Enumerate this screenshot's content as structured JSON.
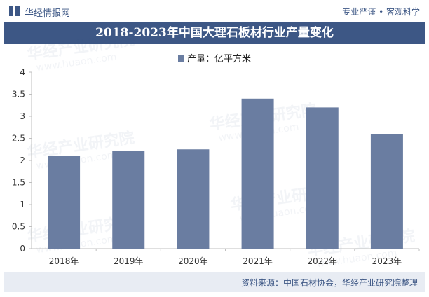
{
  "header": {
    "brand": "华经情报网",
    "slogan": "专业严谨 • 客观科学"
  },
  "footer": {
    "source": "资料来源：中国石材协会，华经产业研究院整理"
  },
  "chart_data": {
    "type": "bar",
    "title": "2018-2023年中国大理石板材行业产量变化",
    "categories": [
      "2018年",
      "2019年",
      "2020年",
      "2021年",
      "2022年",
      "2023年"
    ],
    "series": [
      {
        "name": "产量：亿平方米",
        "values": [
          2.1,
          2.22,
          2.25,
          3.4,
          3.2,
          2.6
        ]
      }
    ],
    "y_ticks": [
      "0",
      "0.5",
      "1",
      "1.5",
      "2",
      "2.5",
      "3",
      "3.5",
      "4"
    ],
    "ylim": [
      0,
      4
    ],
    "legend": "top-center",
    "grid": false,
    "colors": {
      "bar": "#6a7da1",
      "header": "#3d5785"
    }
  },
  "watermark": {
    "text_cn": "华经产业研究院",
    "text_en": "www.huaon.com"
  }
}
